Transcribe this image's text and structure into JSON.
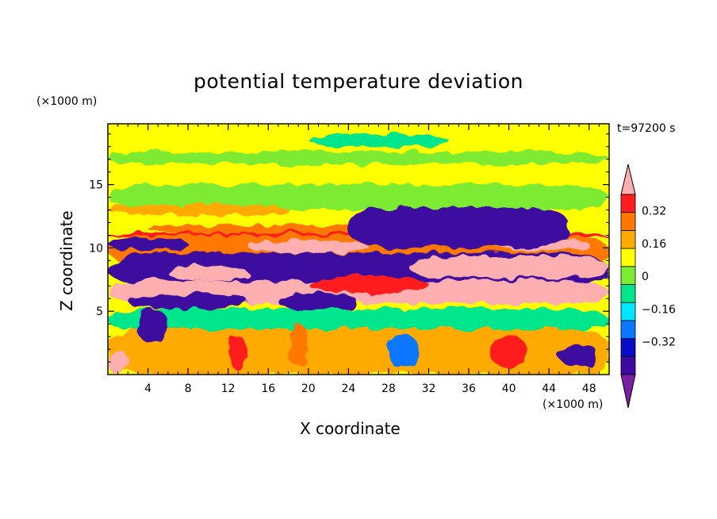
{
  "chart_data": {
    "type": "heatmap",
    "title": "potential temperature deviation",
    "xlabel": "X coordinate",
    "ylabel": "Z coordinate",
    "x_unit": "(×1000 m)",
    "y_unit": "(×1000 m)",
    "time_label": "t=97200 s",
    "xlim": [
      0,
      50
    ],
    "ylim": [
      0,
      19.8
    ],
    "x_ticks": [
      4,
      8,
      12,
      16,
      20,
      24,
      28,
      32,
      36,
      40,
      44,
      48
    ],
    "y_ticks": [
      5,
      10,
      15
    ],
    "colorbar": {
      "levels": [
        -0.48,
        -0.4,
        -0.32,
        -0.24,
        -0.16,
        -0.08,
        0,
        0.08,
        0.16,
        0.24,
        0.32,
        0.4
      ],
      "tick_values": [
        -0.32,
        -0.16,
        0,
        0.16,
        0.32
      ],
      "tick_labels": [
        "−0.32",
        "−0.16",
        "0",
        "0.16",
        "0.32"
      ],
      "colors": [
        "#7a1fa2",
        "#3c0aa0",
        "#0a0ac8",
        "#0a78ff",
        "#00e6ff",
        "#00e68c",
        "#7ceb32",
        "#ffff00",
        "#ffaa00",
        "#ff7800",
        "#ff1e1e",
        "#ffafaf"
      ],
      "extend": "both"
    },
    "regions": [
      {
        "x": [
          0,
          50
        ],
        "z": [
          0,
          19.8
        ],
        "value": 0.04
      },
      {
        "x": [
          0,
          50
        ],
        "z": [
          18.2,
          19.6
        ],
        "value": 0.02
      },
      {
        "x": [
          0,
          50
        ],
        "z": [
          16.6,
          17.6
        ],
        "value": -0.04
      },
      {
        "x": [
          0,
          50
        ],
        "z": [
          13.0,
          15.0
        ],
        "value": -0.04
      },
      {
        "x": [
          20,
          34
        ],
        "z": [
          18.0,
          19.0
        ],
        "value": -0.12
      },
      {
        "x": [
          0,
          18
        ],
        "z": [
          12.6,
          13.4
        ],
        "value": 0.12
      },
      {
        "x": [
          4,
          42
        ],
        "z": [
          11.2,
          11.8
        ],
        "value": 0.2
      },
      {
        "x": [
          0,
          50
        ],
        "z": [
          10.8,
          11.2
        ],
        "value": 0.28
      },
      {
        "x": [
          0,
          50
        ],
        "z": [
          8.6,
          11.0
        ],
        "value": 0.2
      },
      {
        "x": [
          14,
          26
        ],
        "z": [
          9.6,
          10.6
        ],
        "value": 0.36
      },
      {
        "x": [
          38,
          48
        ],
        "z": [
          9.8,
          10.8
        ],
        "value": 0.36
      },
      {
        "x": [
          0,
          8
        ],
        "z": [
          9.8,
          10.8
        ],
        "value": -0.44
      },
      {
        "x": [
          24,
          46
        ],
        "z": [
          10.0,
          13.2
        ],
        "value": -0.44
      },
      {
        "x": [
          0,
          50
        ],
        "z": [
          7.0,
          9.6
        ],
        "value": -0.44
      },
      {
        "x": [
          6,
          14
        ],
        "z": [
          7.4,
          8.6
        ],
        "value": 0.44
      },
      {
        "x": [
          30,
          50
        ],
        "z": [
          7.6,
          9.4
        ],
        "value": 0.44
      },
      {
        "x": [
          0,
          50
        ],
        "z": [
          5.6,
          7.4
        ],
        "value": 0.44
      },
      {
        "x": [
          20,
          32
        ],
        "z": [
          6.4,
          7.8
        ],
        "value": 0.28
      },
      {
        "x": [
          2,
          14
        ],
        "z": [
          5.2,
          6.4
        ],
        "value": -0.44
      },
      {
        "x": [
          17,
          25
        ],
        "z": [
          5.0,
          6.4
        ],
        "value": -0.44
      },
      {
        "x": [
          0,
          50
        ],
        "z": [
          3.4,
          5.2
        ],
        "value": -0.12
      },
      {
        "x": [
          0,
          50
        ],
        "z": [
          0,
          3.6
        ],
        "value": 0.12
      },
      {
        "x": [
          3,
          6
        ],
        "z": [
          2.4,
          5.2
        ],
        "value": -0.44
      },
      {
        "x": [
          0,
          2
        ],
        "z": [
          0,
          2.0
        ],
        "value": 0.36
      },
      {
        "x": [
          12,
          14
        ],
        "z": [
          0.4,
          3.0
        ],
        "value": 0.28
      },
      {
        "x": [
          38,
          42
        ],
        "z": [
          0.6,
          3.0
        ],
        "value": 0.28
      },
      {
        "x": [
          45,
          49
        ],
        "z": [
          0.6,
          2.4
        ],
        "value": -0.44
      },
      {
        "x": [
          28,
          31
        ],
        "z": [
          0.4,
          3.2
        ],
        "value": -0.28
      },
      {
        "x": [
          18,
          20
        ],
        "z": [
          0.6,
          4.0
        ],
        "value": 0.2
      }
    ]
  }
}
